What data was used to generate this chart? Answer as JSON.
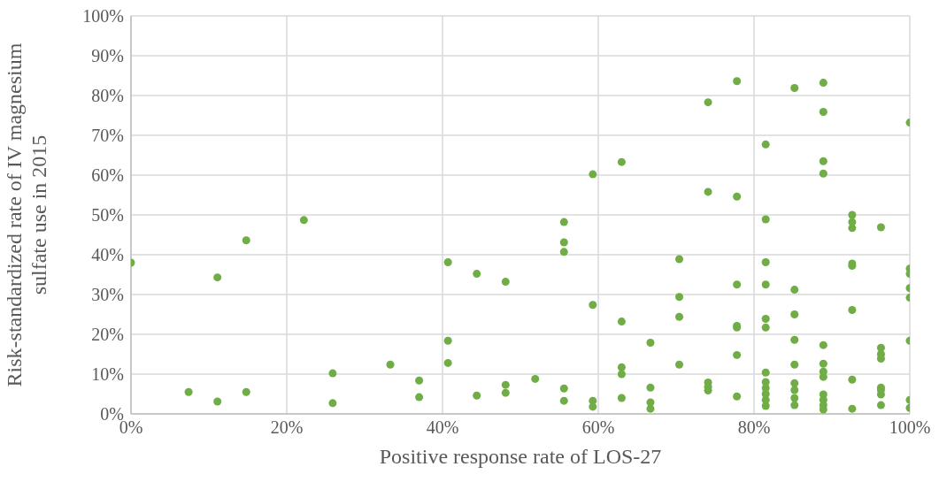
{
  "chart_data": {
    "type": "scatter",
    "xlabel": "Positive response rate of LOS-27",
    "ylabel": "Risk-standardized rate of IV magnesium\nsulfate use in 2015",
    "marker": "circle",
    "grid": true,
    "legend": false,
    "xlim": [
      0,
      100
    ],
    "xticks": [
      {
        "value": 0,
        "label": "0%"
      },
      {
        "value": 20,
        "label": "20%"
      },
      {
        "value": 40,
        "label": "40%"
      },
      {
        "value": 60,
        "label": "60%"
      },
      {
        "value": 80,
        "label": "80%"
      },
      {
        "value": 100,
        "label": "100%"
      }
    ],
    "ylim": [
      0,
      100
    ],
    "yticks": [
      {
        "value": 0,
        "label": "0%"
      },
      {
        "value": 10,
        "label": "10%"
      },
      {
        "value": 20,
        "label": "20%"
      },
      {
        "value": 30,
        "label": "30%"
      },
      {
        "value": 40,
        "label": "40%"
      },
      {
        "value": 50,
        "label": "50%"
      },
      {
        "value": 60,
        "label": "60%"
      },
      {
        "value": 70,
        "label": "70%"
      },
      {
        "value": 80,
        "label": "80%"
      },
      {
        "value": 90,
        "label": "90%"
      },
      {
        "value": 100,
        "label": "100%"
      }
    ],
    "series": [
      {
        "color": "#70ad47",
        "x": [
          0,
          7.4,
          11.1,
          11.1,
          14.8,
          14.8,
          22.2,
          25.9,
          25.9,
          33.3,
          37,
          37,
          40.7,
          40.7,
          40.7,
          44.4,
          44.4,
          48.1,
          48.1,
          48.1,
          51.9,
          55.6,
          55.6,
          55.6,
          55.6,
          55.6,
          59.3,
          59.3,
          59.3,
          59.3,
          63,
          63,
          63,
          63,
          63,
          66.7,
          66.7,
          66.7,
          66.7,
          70.4,
          70.4,
          70.4,
          70.4,
          74.1,
          74.1,
          74.1,
          74.1,
          74.1,
          77.8,
          77.8,
          77.8,
          77.8,
          77.8,
          77.8,
          77.8,
          81.5,
          81.5,
          81.5,
          81.5,
          81.5,
          81.5,
          81.5,
          81.5,
          81.5,
          81.5,
          81.5,
          81.5,
          85.2,
          85.2,
          85.2,
          85.2,
          85.2,
          85.2,
          85.2,
          85.2,
          85.2,
          88.9,
          88.9,
          88.9,
          88.9,
          88.9,
          88.9,
          88.9,
          88.9,
          88.9,
          88.9,
          88.9,
          88.9,
          92.6,
          92.6,
          92.6,
          92.6,
          92.6,
          92.6,
          92.6,
          92.6,
          96.3,
          96.3,
          96.3,
          96.3,
          96.3,
          96.3,
          96.3,
          96.3,
          100,
          100,
          100,
          100,
          100,
          100,
          100,
          100
        ],
        "values": [
          38,
          5.5,
          34.3,
          3.1,
          43.6,
          5.5,
          48.7,
          10.2,
          2.7,
          12.4,
          8.4,
          4.2,
          38.1,
          18.4,
          12.8,
          35.2,
          4.6,
          33.2,
          7.3,
          5.3,
          8.8,
          48.2,
          43.1,
          40.7,
          6.4,
          3.3,
          60.2,
          27.4,
          3.3,
          1.8,
          63.3,
          23.2,
          11.7,
          10,
          4,
          17.9,
          6.6,
          2.9,
          1.3,
          38.9,
          29.4,
          24.4,
          12.4,
          78.3,
          55.8,
          7.9,
          6.8,
          5.9,
          83.6,
          54.6,
          32.5,
          22.1,
          21.7,
          14.8,
          4.4,
          67.7,
          48.9,
          38.1,
          32.5,
          23.9,
          21.7,
          10.4,
          8,
          6.5,
          5,
          3.5,
          2,
          81.9,
          31.2,
          25,
          18.6,
          12.4,
          7.7,
          6,
          4,
          2.2,
          83.2,
          75.9,
          63.5,
          60.4,
          17.3,
          12.6,
          10.6,
          9.3,
          4.9,
          3.5,
          2.2,
          1.1,
          50,
          48.2,
          46.7,
          37.8,
          37.2,
          26.1,
          8.6,
          1.3,
          46.9,
          16.6,
          15,
          13.9,
          6.6,
          6,
          4.9,
          2.2,
          73.2,
          36.5,
          35.2,
          31.6,
          29.2,
          18.4,
          3.5,
          1.5
        ]
      }
    ]
  }
}
